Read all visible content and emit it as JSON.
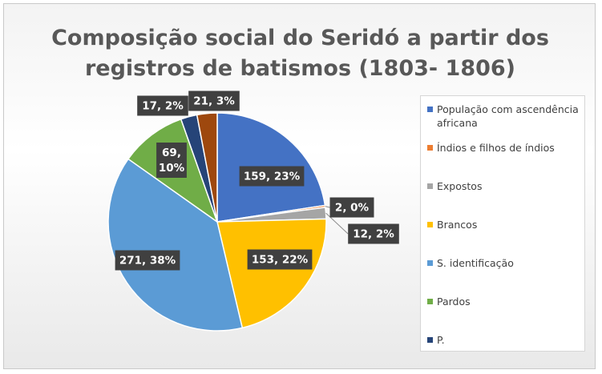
{
  "chart_data": {
    "type": "pie",
    "title_lines": [
      "Composição social do Seridó a partir dos",
      "registros de batismos  (1803- 1806)"
    ],
    "legend_position": "right",
    "slices": [
      {
        "name": "População com ascendência africana",
        "value": 159,
        "label": "159, 23%",
        "color": "#4472C4"
      },
      {
        "name": "Índios e filhos de índios",
        "value": 2,
        "label": "2, 0%",
        "color": "#ED7D31"
      },
      {
        "name": "Expostos",
        "value": 12,
        "label": "12, 2%",
        "color": "#A5A5A5"
      },
      {
        "name": "Brancos",
        "value": 153,
        "label": "153, 22%",
        "color": "#FFC000"
      },
      {
        "name": "S. identificação",
        "value": 271,
        "label": "271, 38%",
        "color": "#5B9BD5"
      },
      {
        "name": "Pardos",
        "value": 69,
        "label": "69, 10%",
        "color": "#70AD47"
      },
      {
        "name": "P.",
        "value": 17,
        "label": "17, 2%",
        "color": "#264478"
      },
      {
        "name": "",
        "value": 21,
        "label": "21, 3%",
        "color": "#9E480E"
      }
    ]
  }
}
